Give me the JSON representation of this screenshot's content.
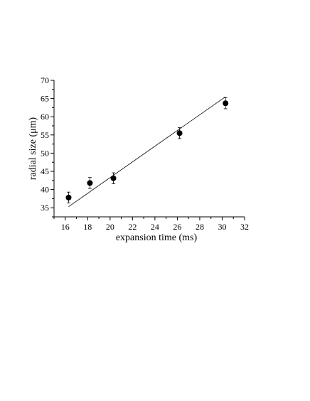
{
  "chart_data": {
    "type": "scatter",
    "title": "",
    "xlabel": "expansion time (ms)",
    "ylabel": "radial size (μm)",
    "xlim": [
      15,
      32
    ],
    "ylim": [
      32.5,
      70
    ],
    "x_ticks": [
      16,
      18,
      20,
      22,
      24,
      26,
      28,
      30,
      32
    ],
    "y_ticks": [
      35,
      40,
      45,
      50,
      55,
      60,
      65,
      70
    ],
    "grid": false,
    "legend": "none",
    "series": [
      {
        "x": [
          16.3,
          18.2,
          20.3,
          26.2,
          30.3
        ],
        "y": [
          37.8,
          41.8,
          43.1,
          55.5,
          63.7
        ],
        "y_error": [
          1.5,
          1.5,
          1.5,
          1.5,
          1.5
        ]
      }
    ],
    "fit_line": {
      "x": [
        16.3,
        30.3
      ],
      "y": [
        35.3,
        65.5
      ]
    },
    "colors": {
      "marker": "#000000",
      "line": "#000000",
      "axis": "#000000"
    }
  }
}
